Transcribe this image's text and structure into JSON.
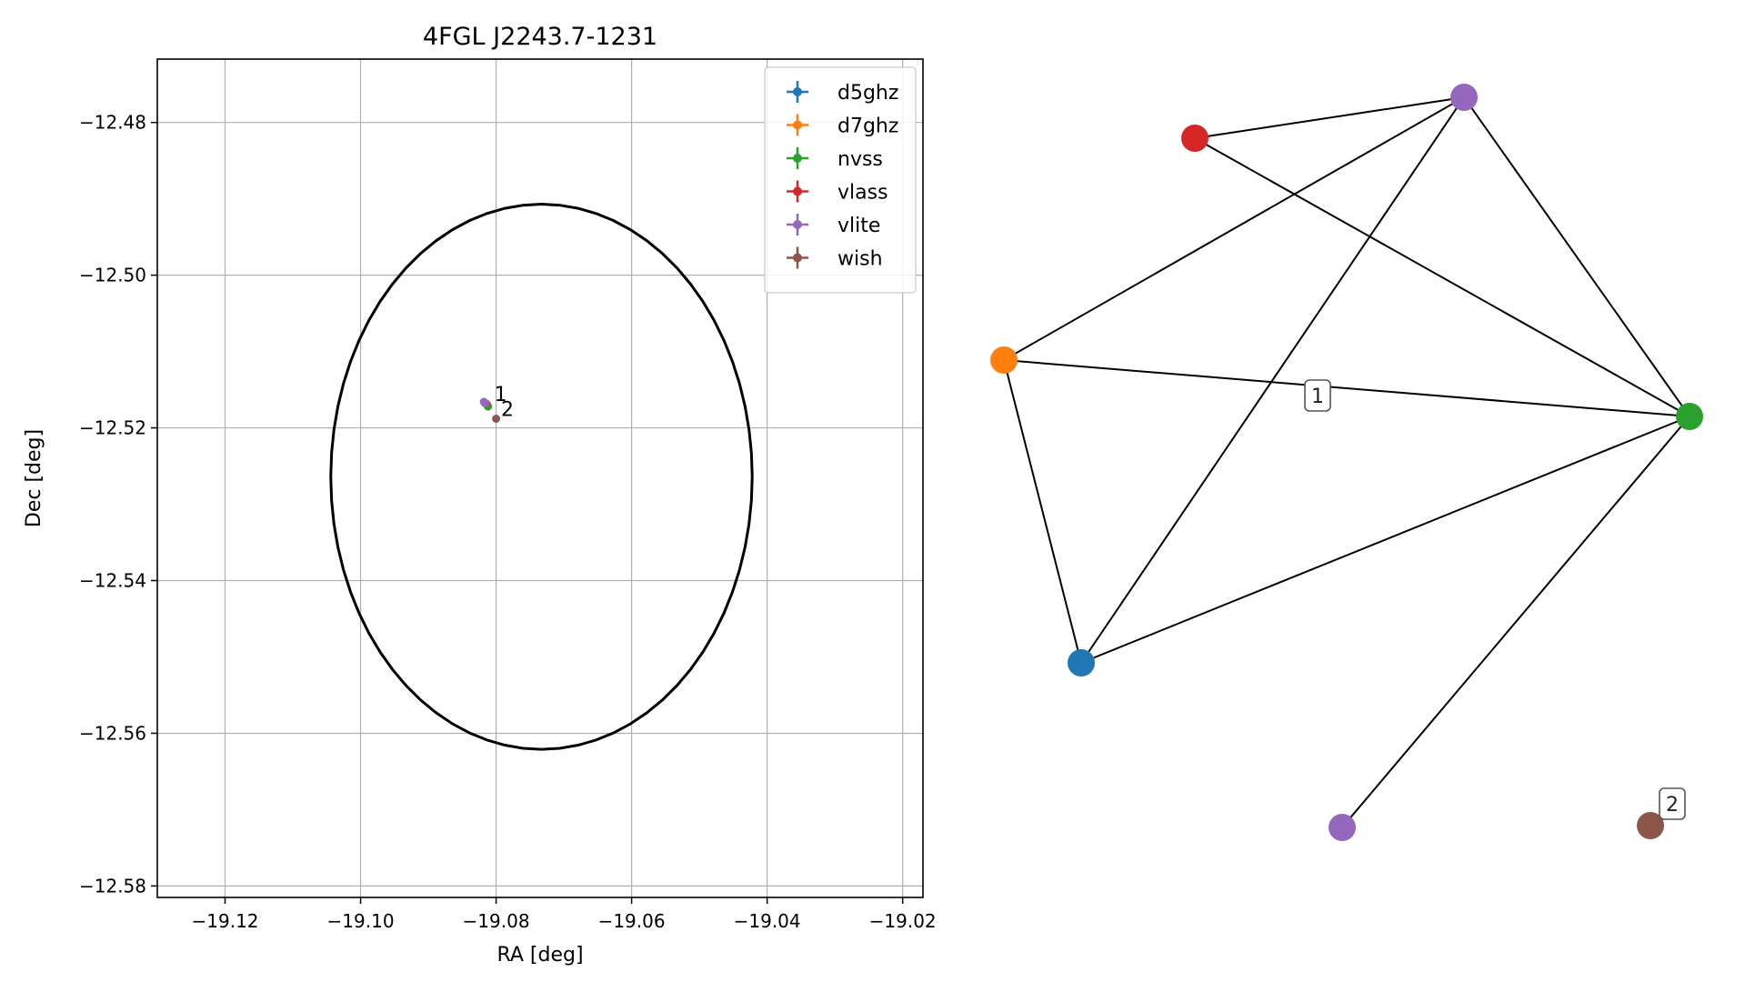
{
  "chart_data": [
    {
      "type": "scatter",
      "title": "4FGL J2243.7-1231",
      "xlabel": "RA [deg]",
      "ylabel": "Dec [deg]",
      "xlim": [
        -19.13,
        -19.017
      ],
      "ylim": [
        -12.5815,
        -12.4717
      ],
      "xticks": [
        -19.12,
        -19.1,
        -19.08,
        -19.06,
        -19.04,
        -19.02
      ],
      "xtick_labels": [
        "−19.12",
        "−19.10",
        "−19.08",
        "−19.06",
        "−19.04",
        "−19.02"
      ],
      "yticks": [
        -12.48,
        -12.5,
        -12.52,
        -12.54,
        -12.56,
        -12.58
      ],
      "ytick_labels": [
        "−12.48",
        "−12.50",
        "−12.52",
        "−12.54",
        "−12.56",
        "−12.58"
      ],
      "grid": true,
      "legend_position": "top-right",
      "series": [
        {
          "name": "d5ghz",
          "color": "#1f77b4",
          "points": [
            {
              "x": -19.0813,
              "y": -12.517
            }
          ]
        },
        {
          "name": "d7ghz",
          "color": "#ff7f0e",
          "points": [
            {
              "x": -19.0813,
              "y": -12.517
            }
          ]
        },
        {
          "name": "nvss",
          "color": "#2ca02c",
          "points": [
            {
              "x": -19.0812,
              "y": -12.5172
            }
          ]
        },
        {
          "name": "vlass",
          "color": "#d62728",
          "points": [
            {
              "x": -19.0815,
              "y": -12.5168
            }
          ]
        },
        {
          "name": "vlite",
          "color": "#9467bd",
          "points": [
            {
              "x": -19.0818,
              "y": -12.5166
            },
            {
              "x": -19.0816,
              "y": -12.5168
            }
          ]
        },
        {
          "name": "wish",
          "color": "#8c564b",
          "points": [
            {
              "x": -19.08,
              "y": -12.5188
            }
          ]
        }
      ],
      "annotations": [
        {
          "text": "1",
          "x": -19.08,
          "y": -12.5155
        },
        {
          "text": "2",
          "x": -19.079,
          "y": -12.5175
        }
      ],
      "ellipse": {
        "center": [
          -19.0733,
          -12.5264
        ],
        "semi_axis_ra": 0.0311,
        "semi_axis_dec": 0.0357,
        "color": "#000000"
      }
    },
    {
      "type": "network-graph",
      "nodes": [
        {
          "id": "vlite_a",
          "color": "#9467bd"
        },
        {
          "id": "vlass",
          "color": "#d62728"
        },
        {
          "id": "d7ghz",
          "color": "#ff7f0e"
        },
        {
          "id": "nvss",
          "color": "#2ca02c"
        },
        {
          "id": "d5ghz",
          "color": "#1f77b4"
        },
        {
          "id": "vlite_b",
          "color": "#9467bd"
        },
        {
          "id": "wish",
          "color": "#8c564b"
        }
      ],
      "edges": [
        [
          "vlass",
          "vlite_a"
        ],
        [
          "vlass",
          "nvss"
        ],
        [
          "d7ghz",
          "vlite_a"
        ],
        [
          "d7ghz",
          "nvss"
        ],
        [
          "d7ghz",
          "d5ghz"
        ],
        [
          "vlite_a",
          "d5ghz"
        ],
        [
          "vlite_a",
          "nvss"
        ],
        [
          "d5ghz",
          "nvss"
        ],
        [
          "nvss",
          "vlite_b"
        ]
      ],
      "group_labels": [
        {
          "text": "1"
        },
        {
          "text": "2"
        }
      ]
    }
  ]
}
